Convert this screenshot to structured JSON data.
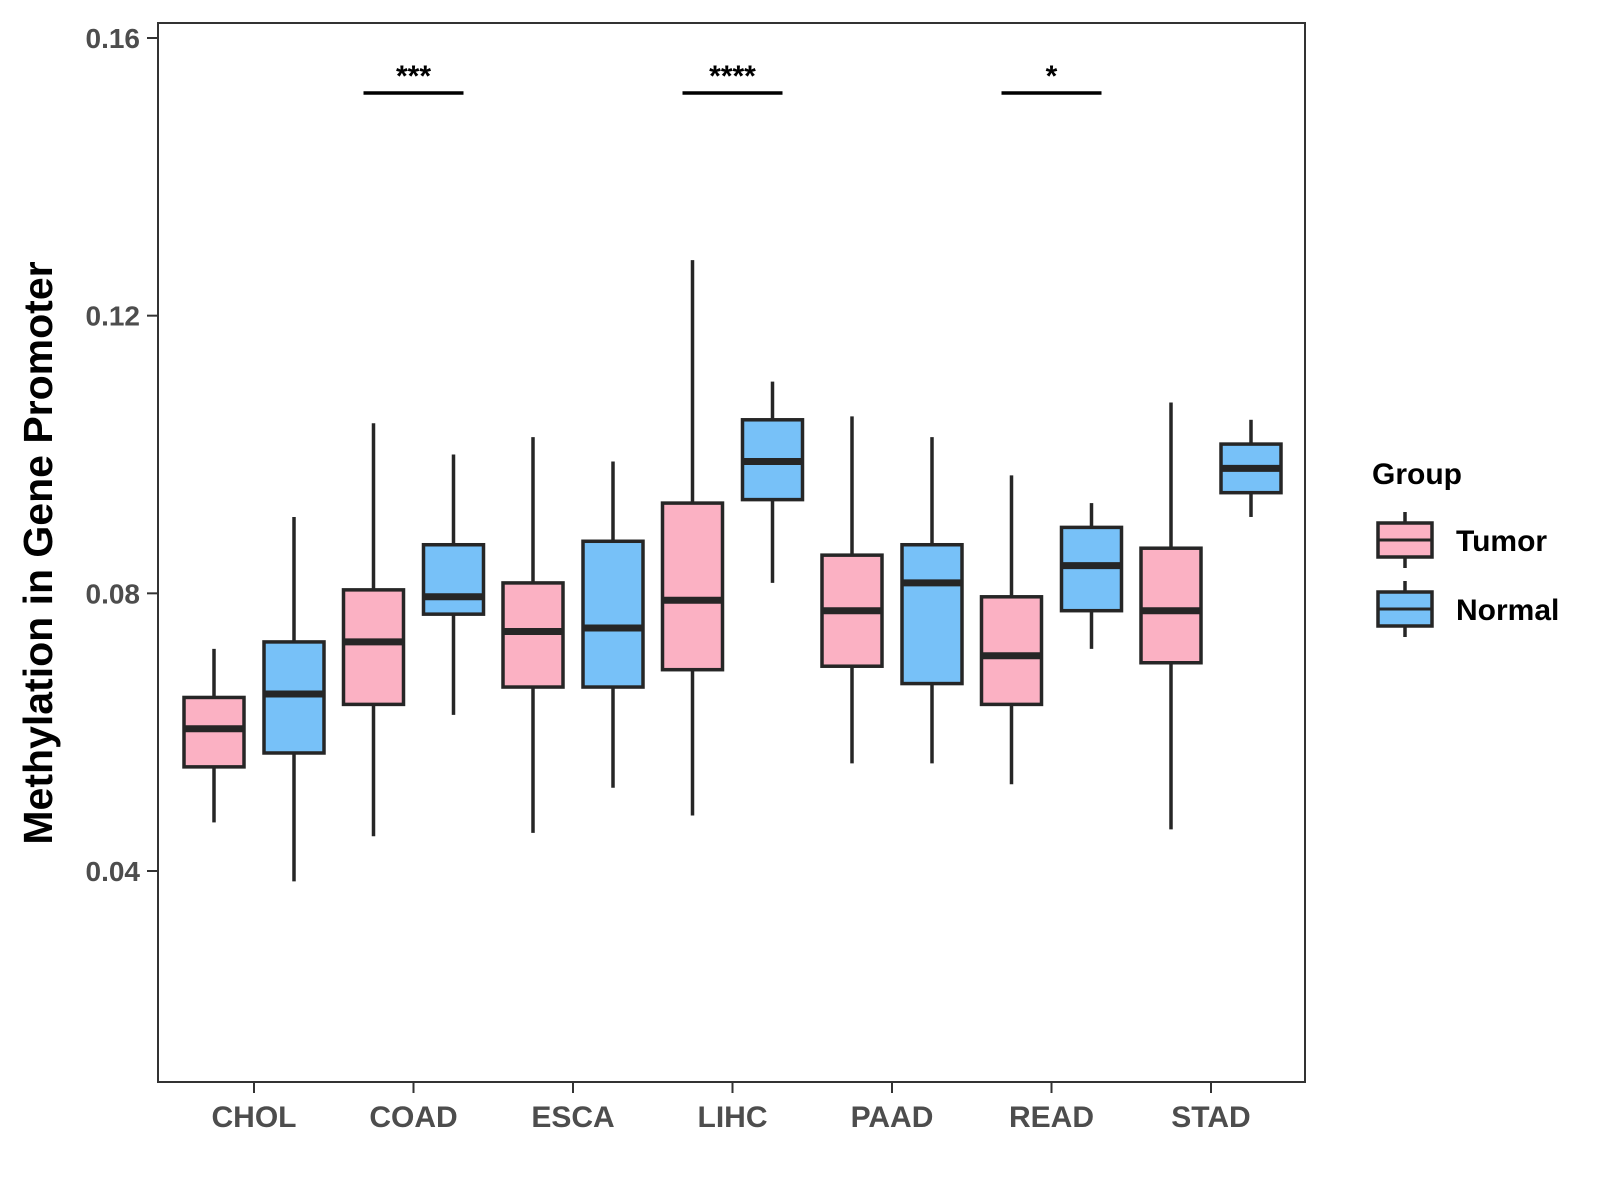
{
  "chart_data": {
    "type": "boxplot",
    "title": "",
    "xlabel": "",
    "ylabel": "Methylation in Gene Promoter",
    "ylim": [
      0.01,
      0.162
    ],
    "yticks": [
      "0.04",
      "0.08",
      "0.12",
      "0.16"
    ],
    "ytick_values": [
      0.04,
      0.08,
      0.12,
      0.16
    ],
    "categories": [
      "CHOL",
      "COAD",
      "ESCA",
      "LIHC",
      "PAAD",
      "READ",
      "STAD"
    ],
    "grid": false,
    "legend": {
      "title": "Group",
      "position": "right",
      "entries": [
        {
          "label": "Tumor",
          "color": "#fbb1c3"
        },
        {
          "label": "Normal",
          "color": "#77c1f8"
        }
      ]
    },
    "series": [
      {
        "name": "Tumor",
        "color": "#fbb1c3",
        "boxes": [
          {
            "whisker_low": 0.047,
            "q1": 0.055,
            "median": 0.0605,
            "q3": 0.065,
            "whisker_high": 0.072
          },
          {
            "whisker_low": 0.045,
            "q1": 0.064,
            "median": 0.073,
            "q3": 0.0805,
            "whisker_high": 0.1045
          },
          {
            "whisker_low": 0.0455,
            "q1": 0.0665,
            "median": 0.0745,
            "q3": 0.0815,
            "whisker_high": 0.1025
          },
          {
            "whisker_low": 0.048,
            "q1": 0.069,
            "median": 0.079,
            "q3": 0.093,
            "whisker_high": 0.128
          },
          {
            "whisker_low": 0.0555,
            "q1": 0.0695,
            "median": 0.0775,
            "q3": 0.0855,
            "whisker_high": 0.1055
          },
          {
            "whisker_low": 0.0525,
            "q1": 0.064,
            "median": 0.071,
            "q3": 0.0795,
            "whisker_high": 0.097
          },
          {
            "whisker_low": 0.046,
            "q1": 0.07,
            "median": 0.0775,
            "q3": 0.0865,
            "whisker_high": 0.1075
          }
        ]
      },
      {
        "name": "Normal",
        "color": "#77c1f8",
        "boxes": [
          {
            "whisker_low": 0.0385,
            "q1": 0.057,
            "median": 0.0655,
            "q3": 0.073,
            "whisker_high": 0.091
          },
          {
            "whisker_low": 0.0625,
            "q1": 0.077,
            "median": 0.0795,
            "q3": 0.087,
            "whisker_high": 0.1
          },
          {
            "whisker_low": 0.052,
            "q1": 0.0665,
            "median": 0.075,
            "q3": 0.0875,
            "whisker_high": 0.099
          },
          {
            "whisker_low": 0.0815,
            "q1": 0.0935,
            "median": 0.099,
            "q3": 0.105,
            "whisker_high": 0.1105
          },
          {
            "whisker_low": 0.0555,
            "q1": 0.067,
            "median": 0.0815,
            "q3": 0.087,
            "whisker_high": 0.1025
          },
          {
            "whisker_low": 0.072,
            "q1": 0.0775,
            "median": 0.084,
            "q3": 0.0895,
            "whisker_high": 0.093
          },
          {
            "whisker_low": 0.091,
            "q1": 0.0945,
            "median": 0.098,
            "q3": 0.1015,
            "whisker_high": 0.105
          }
        ]
      }
    ],
    "significance": [
      {
        "category": "COAD",
        "label": "***"
      },
      {
        "category": "LIHC",
        "label": "****"
      },
      {
        "category": "READ",
        "label": "*"
      }
    ]
  }
}
